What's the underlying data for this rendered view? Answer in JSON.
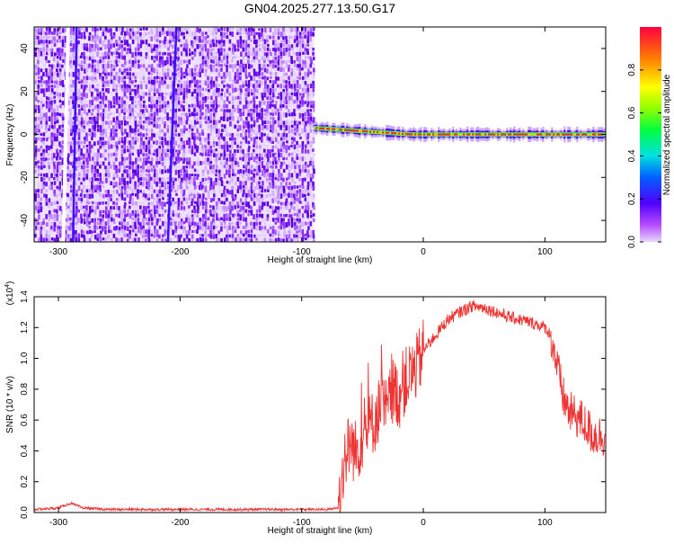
{
  "title": "GN04.2025.277.13.50.G17",
  "chart_data": [
    {
      "type": "heatmap",
      "xlabel": "Height of straight line (km)",
      "ylabel": "Frequency (Hz)",
      "xlim": [
        -320,
        150
      ],
      "ylim": [
        -50,
        50
      ],
      "xticks": [
        -300,
        -200,
        -100,
        0,
        100
      ],
      "yticks": [
        -40,
        -20,
        0,
        20,
        40
      ],
      "colorbar": {
        "label": "Normalized spectral amplitude",
        "range": [
          0,
          1
        ],
        "ticks": [
          0.0,
          0.2,
          0.4,
          0.6,
          0.8
        ]
      },
      "noise_region_x": [
        -320,
        -90
      ],
      "signal_line_x": [
        -90,
        150
      ],
      "signal_line_freq_start": 3,
      "signal_line_freq_end": 0,
      "stripe_lines": [
        {
          "x_top": -292,
          "x_bottom": -296
        },
        {
          "x_top": -285,
          "x_bottom": -288
        },
        {
          "x_top": -203,
          "x_bottom": -210
        }
      ]
    },
    {
      "type": "line",
      "xlabel": "Height of straight line (km)",
      "ylabel": "SNR (10 * v/v)",
      "yscale_label": "(x10",
      "yscale_exp": "4",
      "yscale_close": ")",
      "xlim": [
        -320,
        150
      ],
      "ylim": [
        0,
        1.4
      ],
      "xticks": [
        -300,
        -200,
        -100,
        0,
        100
      ],
      "yticks": [
        0.0,
        0.2,
        0.4,
        0.6,
        0.8,
        1.0,
        1.2,
        1.4
      ],
      "series": [
        {
          "color": "#ee3333",
          "x": [
            -320,
            -300,
            -290,
            -280,
            -260,
            -200,
            -150,
            -100,
            -80,
            -70,
            -65,
            -60,
            -55,
            -50,
            -45,
            -40,
            -35,
            -30,
            -25,
            -20,
            -15,
            -10,
            -5,
            0,
            10,
            20,
            30,
            40,
            50,
            60,
            70,
            80,
            90,
            100,
            105,
            110,
            115,
            120,
            130,
            140,
            150
          ],
          "y": [
            0.02,
            0.03,
            0.06,
            0.03,
            0.02,
            0.02,
            0.02,
            0.02,
            0.02,
            0.03,
            0.35,
            0.45,
            0.38,
            0.5,
            0.55,
            0.6,
            0.7,
            0.65,
            0.8,
            0.75,
            0.85,
            0.9,
            0.95,
            1.05,
            1.15,
            1.25,
            1.3,
            1.34,
            1.33,
            1.3,
            1.27,
            1.25,
            1.23,
            1.2,
            1.15,
            0.95,
            0.75,
            0.65,
            0.6,
            0.5,
            0.5
          ]
        }
      ]
    }
  ]
}
